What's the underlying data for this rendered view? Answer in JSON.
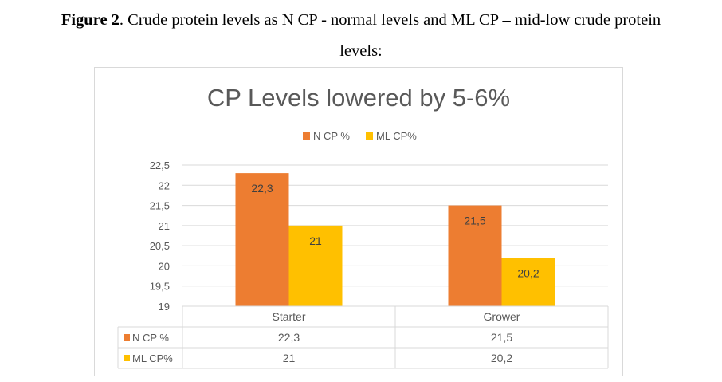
{
  "caption": {
    "prefix": "Figure 2",
    "line1": ". Crude protein levels as N CP - normal levels and ML CP – mid-low crude protein",
    "line2": "levels:"
  },
  "chart_data": {
    "type": "bar",
    "title": "CP Levels lowered by 5-6%",
    "categories": [
      "Starter",
      "Grower"
    ],
    "series": [
      {
        "name": "N CP %",
        "values": [
          22.3,
          21.5
        ],
        "labels": [
          "22,3",
          "21,5"
        ],
        "color": "#ED7D31"
      },
      {
        "name": "ML CP%",
        "values": [
          21,
          20.2
        ],
        "labels": [
          "21",
          "20,2"
        ],
        "color": "#FFC000"
      }
    ],
    "ylim": [
      19,
      22.5
    ],
    "yticks": [
      22.5,
      22,
      21.5,
      21,
      20.5,
      20,
      19.5,
      19
    ],
    "ytick_labels": [
      "22,5",
      "22",
      "21,5",
      "21",
      "20,5",
      "20",
      "19,5",
      "19"
    ],
    "grid": true,
    "legend_position": "top",
    "data_table": true
  }
}
